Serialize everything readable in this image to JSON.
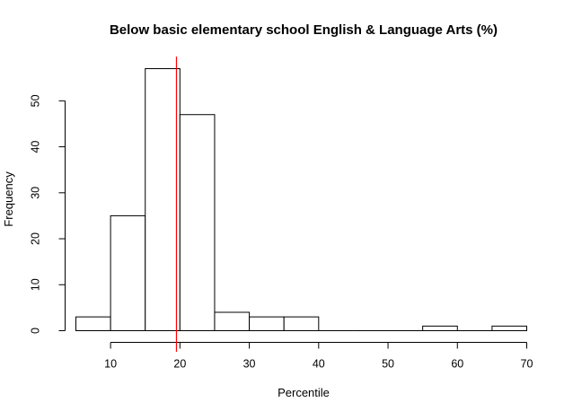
{
  "chart_data": {
    "type": "histogram",
    "title": "Below basic elementary school English & Language Arts (%)",
    "xlabel": "Percentile",
    "ylabel": "Frequency",
    "bin_width": 5,
    "bins": [
      {
        "start": 5,
        "end": 10,
        "count": 3
      },
      {
        "start": 10,
        "end": 15,
        "count": 25
      },
      {
        "start": 15,
        "end": 20,
        "count": 57
      },
      {
        "start": 20,
        "end": 25,
        "count": 47
      },
      {
        "start": 25,
        "end": 30,
        "count": 4
      },
      {
        "start": 30,
        "end": 35,
        "count": 3
      },
      {
        "start": 35,
        "end": 40,
        "count": 3
      },
      {
        "start": 40,
        "end": 45,
        "count": 0
      },
      {
        "start": 45,
        "end": 50,
        "count": 0
      },
      {
        "start": 50,
        "end": 55,
        "count": 0
      },
      {
        "start": 55,
        "end": 60,
        "count": 1
      },
      {
        "start": 60,
        "end": 65,
        "count": 0
      },
      {
        "start": 65,
        "end": 70,
        "count": 1
      }
    ],
    "xlim": [
      5,
      70
    ],
    "ylim": [
      0,
      57
    ],
    "x_ticks": [
      10,
      20,
      30,
      40,
      50,
      60,
      70
    ],
    "y_ticks": [
      0,
      10,
      20,
      30,
      40,
      50
    ],
    "reference_line": {
      "x": 19.5,
      "color": "#ff0000"
    },
    "bar_fill": "#ffffff",
    "bar_stroke": "#000000",
    "grid": false
  }
}
